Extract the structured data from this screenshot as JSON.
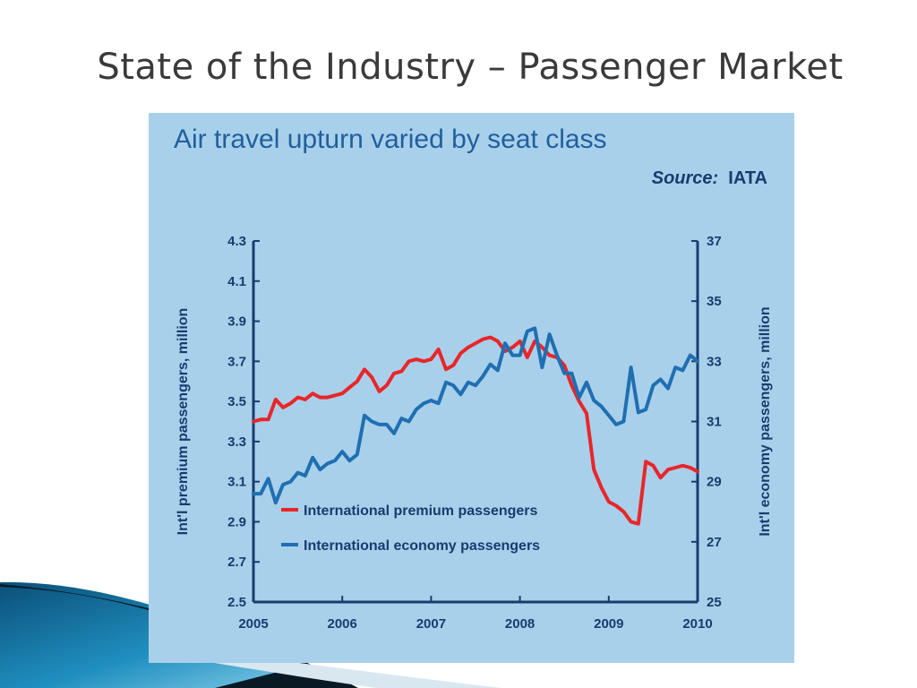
{
  "slide": {
    "title": "State of the Industry – Passenger Market"
  },
  "colors": {
    "premium": "#e8262a",
    "economy": "#1f6fb2",
    "axis": "#173c6e",
    "panel": "#a9d0ea",
    "heading": "#1f5f9e"
  },
  "chart_data": {
    "type": "line",
    "title": "Air travel upturn varied by seat class",
    "source_label": "Source:",
    "source_value": "IATA",
    "xlabel": "",
    "ylabel_left": "Int'l premium passengers, million",
    "ylabel_right": "Int'l economy passengers, million",
    "x_ticks": [
      "2005",
      "2006",
      "2007",
      "2008",
      "2009",
      "2010"
    ],
    "x_range": [
      2005,
      2010
    ],
    "y_left_ticks": [
      "4.3",
      "4.1",
      "3.9",
      "3.7",
      "3.5",
      "3.3",
      "3.1",
      "2.9",
      "2.7",
      "2.5"
    ],
    "y_left_range": [
      2.5,
      4.3
    ],
    "y_right_ticks": [
      "37",
      "35",
      "33",
      "31",
      "29",
      "27",
      "25"
    ],
    "y_right_range": [
      25,
      37
    ],
    "legend_position": "lower-left",
    "series": [
      {
        "name": "International premium passengers",
        "axis": "left",
        "x": [
          2005.0,
          2005.083,
          2005.167,
          2005.25,
          2005.333,
          2005.417,
          2005.5,
          2005.583,
          2005.667,
          2005.75,
          2005.833,
          2005.917,
          2006.0,
          2006.083,
          2006.167,
          2006.25,
          2006.333,
          2006.417,
          2006.5,
          2006.583,
          2006.667,
          2006.75,
          2006.833,
          2006.917,
          2007.0,
          2007.083,
          2007.167,
          2007.25,
          2007.333,
          2007.417,
          2007.5,
          2007.583,
          2007.667,
          2007.75,
          2007.833,
          2007.917,
          2008.0,
          2008.083,
          2008.167,
          2008.25,
          2008.333,
          2008.417,
          2008.5,
          2008.583,
          2008.667,
          2008.75,
          2008.833,
          2008.917,
          2009.0,
          2009.083,
          2009.167,
          2009.25,
          2009.333,
          2009.417,
          2009.5,
          2009.583,
          2009.667,
          2009.75,
          2009.833,
          2009.917,
          2010.0
        ],
        "values": [
          3.4,
          3.41,
          3.41,
          3.51,
          3.47,
          3.49,
          3.52,
          3.51,
          3.54,
          3.52,
          3.52,
          3.53,
          3.54,
          3.57,
          3.6,
          3.66,
          3.62,
          3.55,
          3.58,
          3.64,
          3.65,
          3.7,
          3.71,
          3.7,
          3.71,
          3.76,
          3.66,
          3.68,
          3.74,
          3.77,
          3.79,
          3.81,
          3.82,
          3.8,
          3.75,
          3.77,
          3.8,
          3.72,
          3.8,
          3.77,
          3.73,
          3.72,
          3.68,
          3.58,
          3.5,
          3.44,
          3.16,
          3.07,
          3.0,
          2.98,
          2.95,
          2.9,
          2.89,
          3.2,
          3.18,
          3.12,
          3.16,
          3.17,
          3.18,
          3.17,
          3.15
        ]
      },
      {
        "name": "International economy passengers",
        "axis": "right",
        "x": [
          2005.0,
          2005.083,
          2005.167,
          2005.25,
          2005.333,
          2005.417,
          2005.5,
          2005.583,
          2005.667,
          2005.75,
          2005.833,
          2005.917,
          2006.0,
          2006.083,
          2006.167,
          2006.25,
          2006.333,
          2006.417,
          2006.5,
          2006.583,
          2006.667,
          2006.75,
          2006.833,
          2006.917,
          2007.0,
          2007.083,
          2007.167,
          2007.25,
          2007.333,
          2007.417,
          2007.5,
          2007.583,
          2007.667,
          2007.75,
          2007.833,
          2007.917,
          2008.0,
          2008.083,
          2008.167,
          2008.25,
          2008.333,
          2008.417,
          2008.5,
          2008.583,
          2008.667,
          2008.75,
          2008.833,
          2008.917,
          2009.0,
          2009.083,
          2009.167,
          2009.25,
          2009.333,
          2009.417,
          2009.5,
          2009.583,
          2009.667,
          2009.75,
          2009.833,
          2009.917,
          2010.0
        ],
        "values": [
          28.6,
          28.6,
          29.1,
          28.3,
          28.9,
          29.0,
          29.3,
          29.2,
          29.8,
          29.4,
          29.6,
          29.7,
          30.0,
          29.7,
          29.9,
          31.2,
          31.0,
          30.9,
          30.9,
          30.6,
          31.1,
          31.0,
          31.4,
          31.6,
          31.7,
          31.6,
          32.3,
          32.2,
          31.9,
          32.3,
          32.2,
          32.5,
          32.9,
          32.7,
          33.6,
          33.2,
          33.2,
          34.0,
          34.1,
          32.8,
          33.9,
          33.2,
          32.6,
          32.6,
          31.8,
          32.3,
          31.7,
          31.5,
          31.2,
          30.9,
          31.0,
          32.8,
          31.3,
          31.4,
          32.2,
          32.4,
          32.1,
          32.8,
          32.7,
          33.2,
          33.0
        ]
      }
    ]
  }
}
